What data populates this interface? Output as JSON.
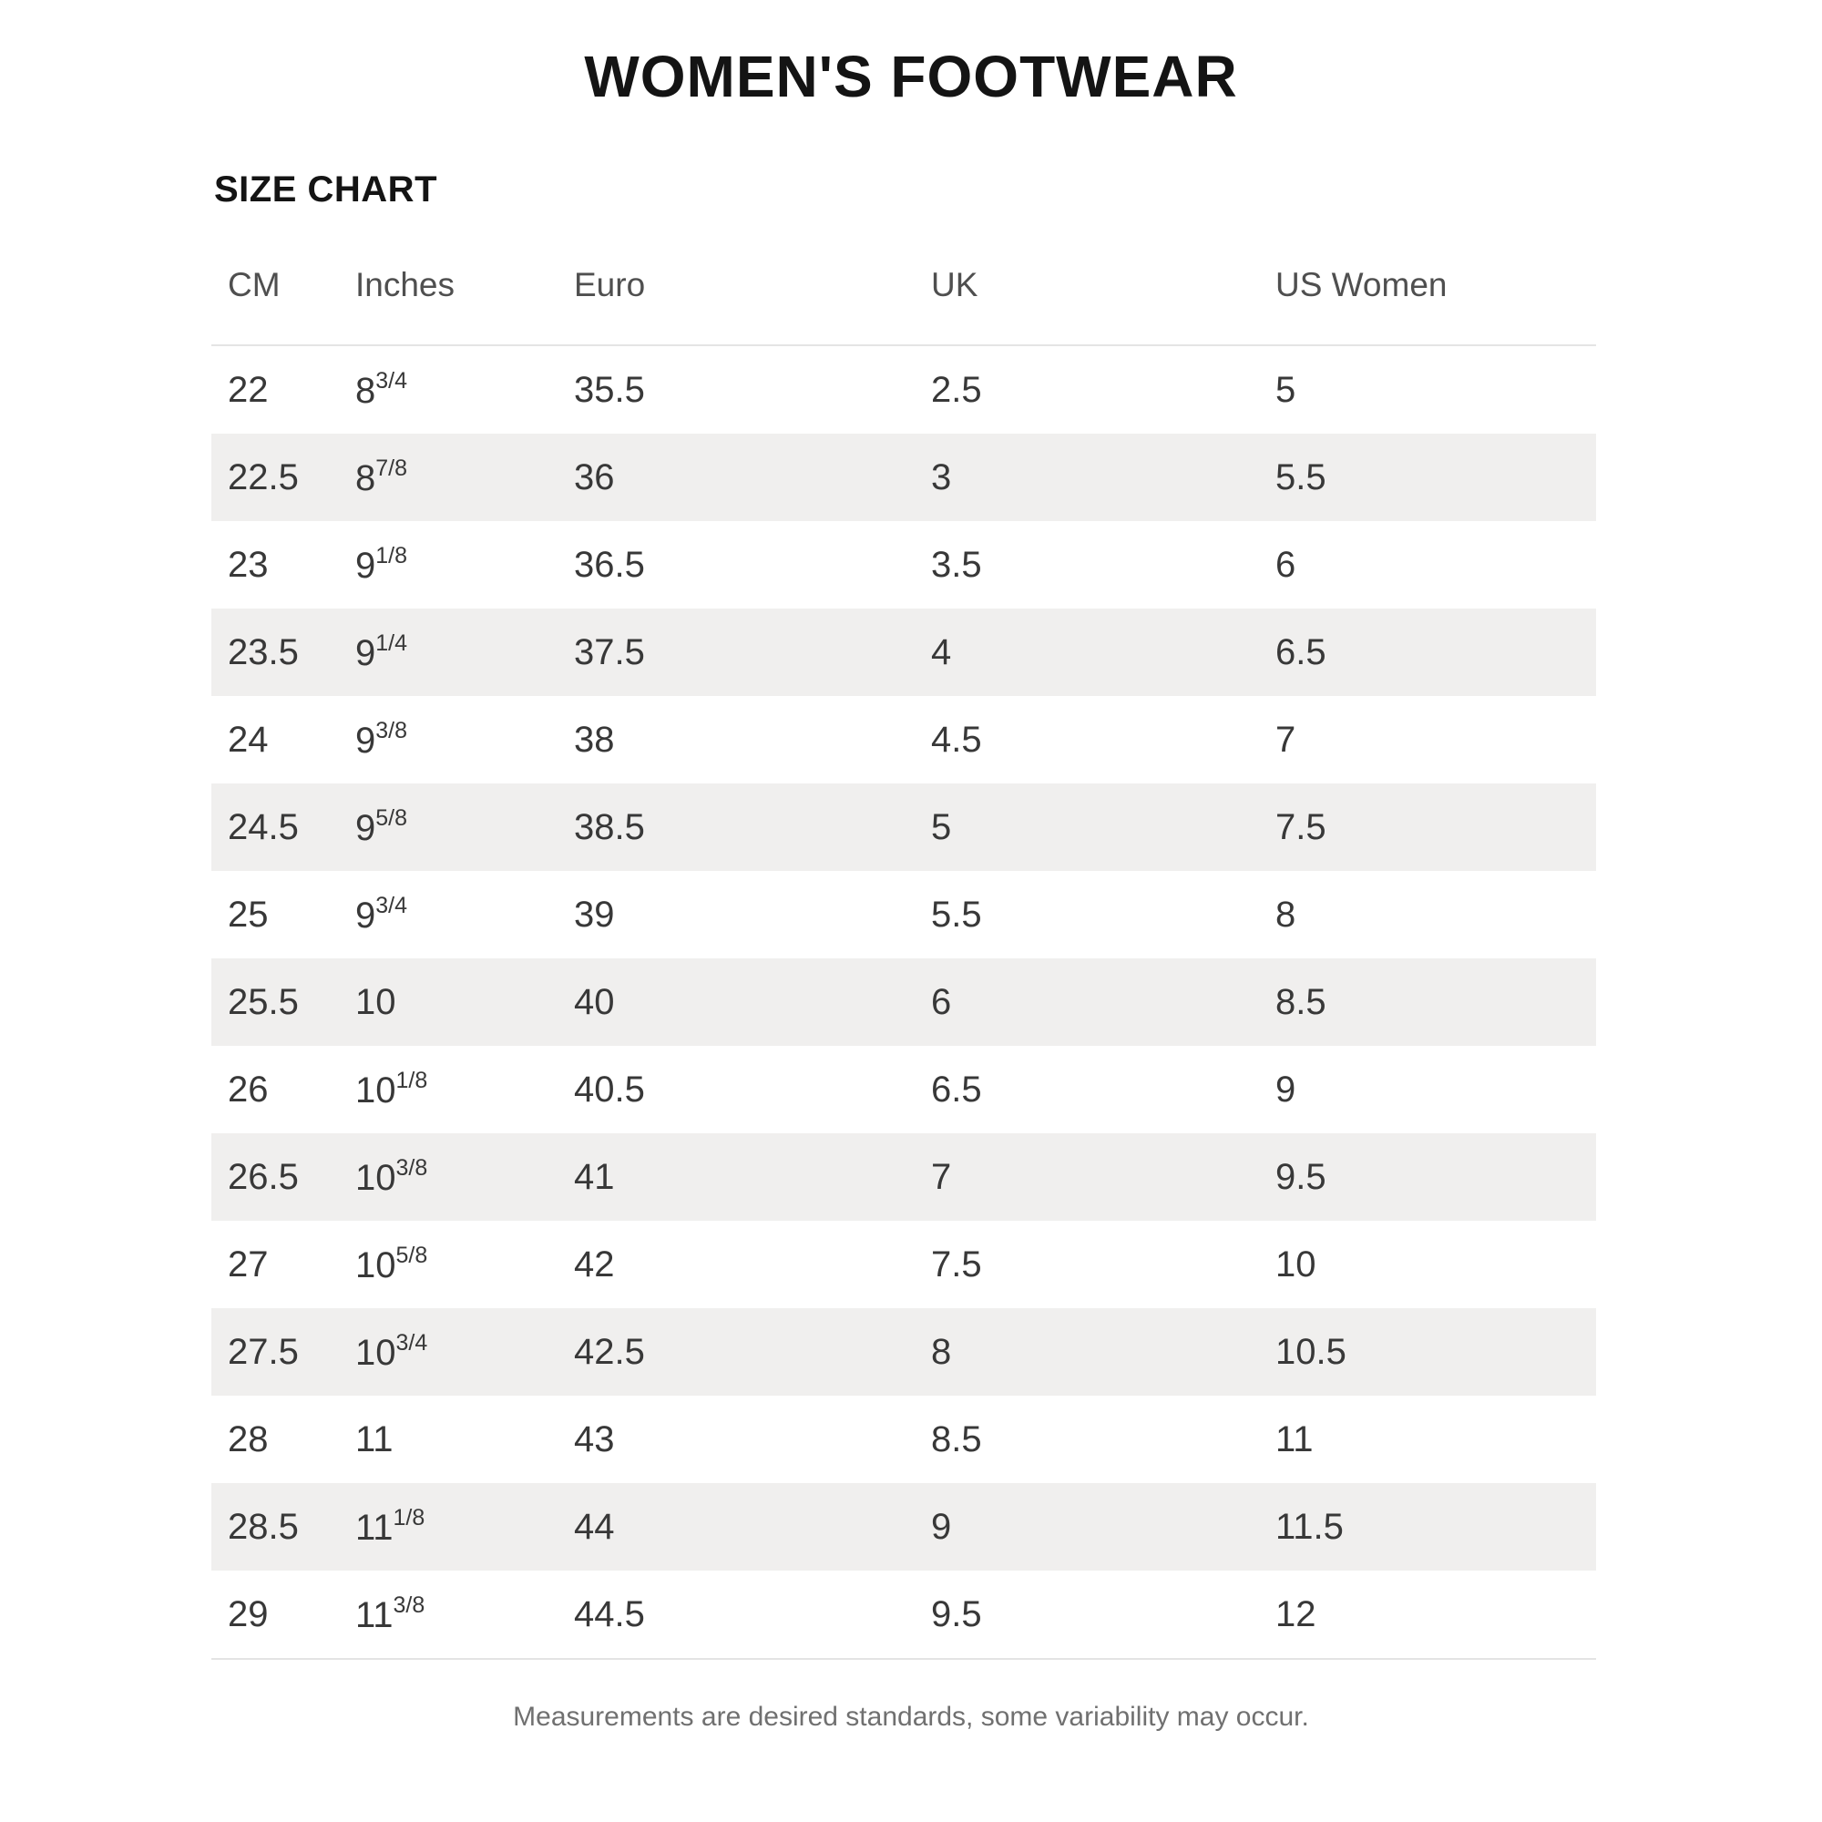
{
  "header": {
    "title": "WOMEN'S FOOTWEAR",
    "subtitle": "SIZE CHART"
  },
  "table": {
    "columns": [
      "CM",
      "Inches",
      "Euro",
      "UK",
      "US Women"
    ],
    "rows": [
      {
        "cm": "22",
        "inches": {
          "base": "8",
          "frac": "3/4"
        },
        "euro": "35.5",
        "uk": "2.5",
        "us": "5"
      },
      {
        "cm": "22.5",
        "inches": {
          "base": "8",
          "frac": "7/8"
        },
        "euro": "36",
        "uk": "3",
        "us": "5.5"
      },
      {
        "cm": "23",
        "inches": {
          "base": "9",
          "frac": "1/8"
        },
        "euro": "36.5",
        "uk": "3.5",
        "us": "6"
      },
      {
        "cm": "23.5",
        "inches": {
          "base": "9",
          "frac": "1/4"
        },
        "euro": "37.5",
        "uk": "4",
        "us": "6.5"
      },
      {
        "cm": "24",
        "inches": {
          "base": "9",
          "frac": "3/8"
        },
        "euro": "38",
        "uk": "4.5",
        "us": "7"
      },
      {
        "cm": "24.5",
        "inches": {
          "base": "9",
          "frac": "5/8"
        },
        "euro": "38.5",
        "uk": "5",
        "us": "7.5"
      },
      {
        "cm": "25",
        "inches": {
          "base": "9",
          "frac": "3/4"
        },
        "euro": "39",
        "uk": "5.5",
        "us": "8"
      },
      {
        "cm": "25.5",
        "inches": {
          "base": "10",
          "frac": ""
        },
        "euro": "40",
        "uk": "6",
        "us": "8.5"
      },
      {
        "cm": "26",
        "inches": {
          "base": "10",
          "frac": "1/8"
        },
        "euro": "40.5",
        "uk": "6.5",
        "us": "9"
      },
      {
        "cm": "26.5",
        "inches": {
          "base": "10",
          "frac": "3/8"
        },
        "euro": "41",
        "uk": "7",
        "us": "9.5"
      },
      {
        "cm": "27",
        "inches": {
          "base": "10",
          "frac": "5/8"
        },
        "euro": "42",
        "uk": "7.5",
        "us": "10"
      },
      {
        "cm": "27.5",
        "inches": {
          "base": "10",
          "frac": "3/4"
        },
        "euro": "42.5",
        "uk": "8",
        "us": "10.5"
      },
      {
        "cm": "28",
        "inches": {
          "base": "11",
          "frac": ""
        },
        "euro": "43",
        "uk": "8.5",
        "us": "11"
      },
      {
        "cm": "28.5",
        "inches": {
          "base": "11",
          "frac": "1/8"
        },
        "euro": "44",
        "uk": "9",
        "us": "11.5"
      },
      {
        "cm": "29",
        "inches": {
          "base": "11",
          "frac": "3/8"
        },
        "euro": "44.5",
        "uk": "9.5",
        "us": "12"
      }
    ]
  },
  "footnote": "Measurements are desired standards, some variability may occur.",
  "colors": {
    "title_text": "#141414",
    "header_text": "#4f4f4f",
    "body_text": "#383838",
    "stripe": "#f0efee",
    "border": "#e4e4e4",
    "footnote_text": "#707070",
    "background": "#ffffff"
  }
}
